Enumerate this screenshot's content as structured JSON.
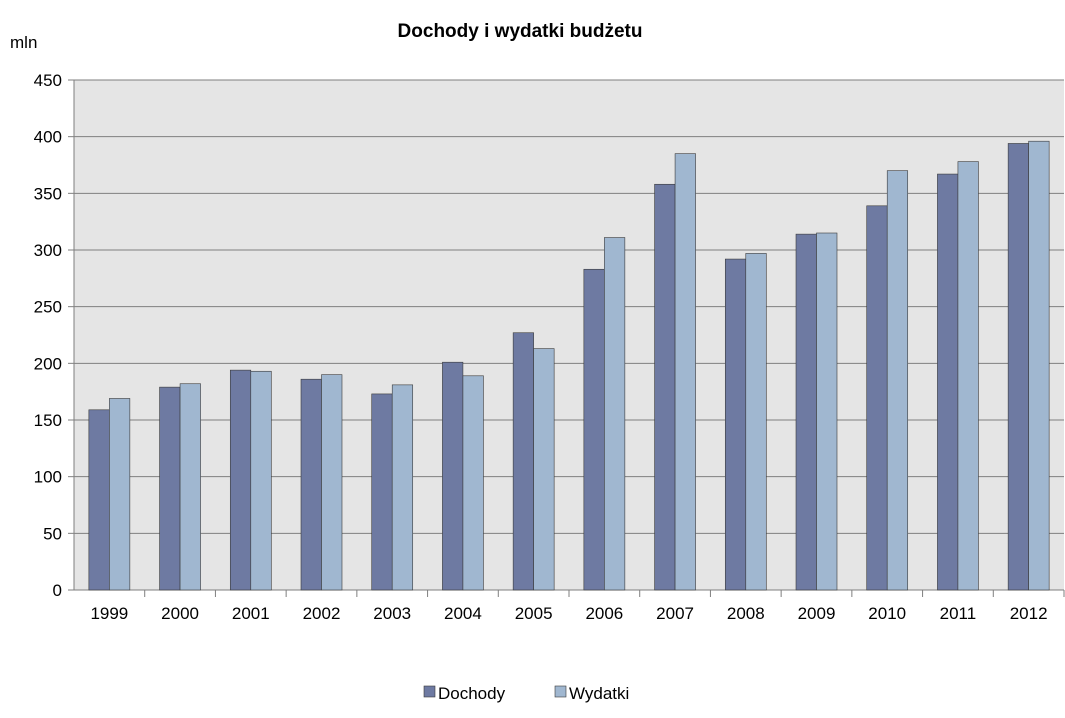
{
  "chart_data": {
    "type": "bar",
    "title": "Dochody i wydatki budżetu",
    "ylabel": "mln",
    "xlabel": "",
    "categories": [
      "1999",
      "2000",
      "2001",
      "2002",
      "2003",
      "2004",
      "2005",
      "2006",
      "2007",
      "2008",
      "2009",
      "2010",
      "2011",
      "2012"
    ],
    "series": [
      {
        "name": "Dochody",
        "color": "#6e7aa2",
        "values": [
          159,
          179,
          194,
          186,
          173,
          201,
          227,
          283,
          358,
          292,
          314,
          339,
          367,
          394
        ]
      },
      {
        "name": "Wydatki",
        "color": "#a0b7d0",
        "values": [
          169,
          182,
          193,
          190,
          181,
          189,
          213,
          311,
          385,
          297,
          315,
          370,
          378,
          396
        ]
      }
    ],
    "ylim": [
      0,
      450
    ],
    "yticks": [
      0,
      50,
      100,
      150,
      200,
      250,
      300,
      350,
      400,
      450
    ],
    "grid": true,
    "plot_background": "#e5e5e5",
    "legend_position": "bottom"
  }
}
